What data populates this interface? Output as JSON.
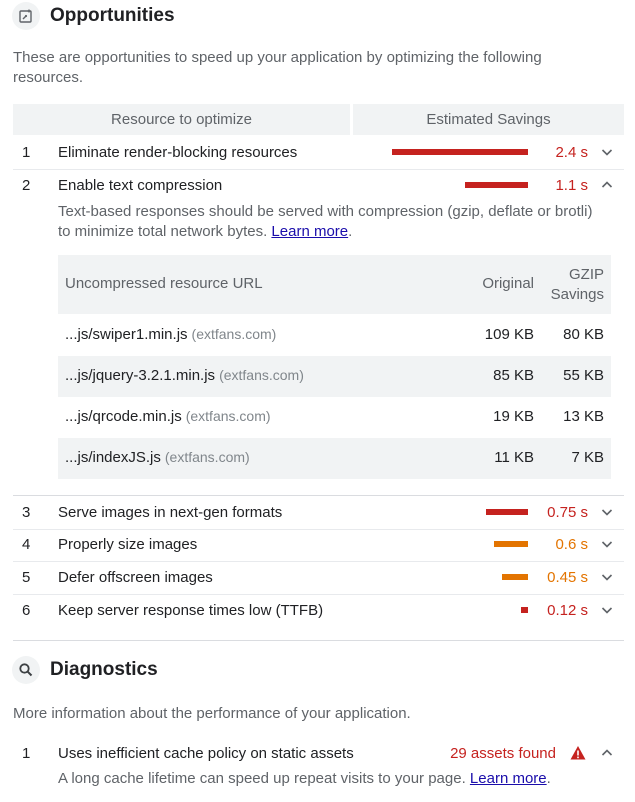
{
  "opportunities": {
    "title": "Opportunities",
    "description": "These are opportunities to speed up your application by optimizing the following resources.",
    "col_resource": "Resource to optimize",
    "col_savings": "Estimated Savings",
    "items": [
      {
        "num": "1",
        "title": "Eliminate render-blocking resources",
        "savings": "2.4 s",
        "severity": "red",
        "bar_fraction": 1.0,
        "expanded": false
      },
      {
        "num": "2",
        "title": "Enable text compression",
        "savings": "1.1 s",
        "severity": "red",
        "bar_fraction": 0.46,
        "expanded": true
      },
      {
        "num": "3",
        "title": "Serve images in next-gen formats",
        "savings": "0.75 s",
        "severity": "red",
        "bar_fraction": 0.31,
        "expanded": false
      },
      {
        "num": "4",
        "title": "Properly size images",
        "savings": "0.6 s",
        "severity": "orange",
        "bar_fraction": 0.25,
        "expanded": false
      },
      {
        "num": "5",
        "title": "Defer offscreen images",
        "savings": "0.45 s",
        "severity": "orange",
        "bar_fraction": 0.19,
        "expanded": false
      },
      {
        "num": "6",
        "title": "Keep server response times low (TTFB)",
        "savings": "0.12 s",
        "severity": "red",
        "bar_fraction": 0.05,
        "expanded": false
      }
    ],
    "text_compression": {
      "description": "Text-based responses should be served with compression (gzip, deflate or brotli) to minimize total network bytes.",
      "learn_more": "Learn more",
      "learn_more_suffix": ".",
      "col_url": "Uncompressed resource URL",
      "col_original": "Original",
      "col_gzip_line1": "GZIP",
      "col_gzip_line2": "Savings",
      "resources": [
        {
          "url": "...js/swiper1.min.js",
          "host": "(extfans.com)",
          "original": "109 KB",
          "savings": "80 KB"
        },
        {
          "url": "...js/jquery-3.2.1.min.js",
          "host": "(extfans.com)",
          "original": "85 KB",
          "savings": "55 KB"
        },
        {
          "url": "...js/qrcode.min.js",
          "host": "(extfans.com)",
          "original": "19 KB",
          "savings": "13 KB"
        },
        {
          "url": "...js/indexJS.js",
          "host": "(extfans.com)",
          "original": "11 KB",
          "savings": "7 KB"
        }
      ]
    }
  },
  "diagnostics": {
    "title": "Diagnostics",
    "description": "More information about the performance of your application.",
    "items": [
      {
        "num": "1",
        "title": "Uses inefficient cache policy on static assets",
        "summary": "29 assets found",
        "detail": "A long cache lifetime can speed up repeat visits to your page.",
        "learn_more": "Learn more",
        "learn_more_suffix": "."
      }
    ]
  },
  "colors": {
    "red": "#c5221f",
    "orange": "#e37400",
    "link": "#1a0dab"
  },
  "icons": {
    "opportunities": "speed-page-icon",
    "diagnostics": "search-icon",
    "warning": "warning-triangle-icon",
    "expand": "chevron-down-icon",
    "collapse": "chevron-up-icon"
  }
}
